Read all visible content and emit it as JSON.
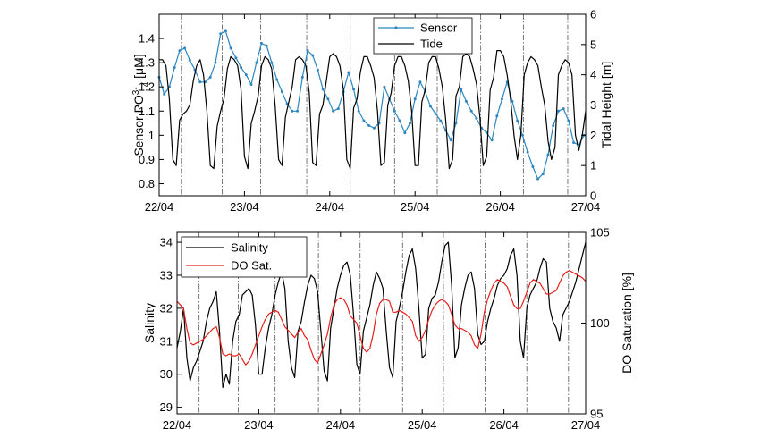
{
  "chart_data": [
    {
      "type": "line",
      "x_ticks": [
        "22/04",
        "23/04",
        "24/04",
        "25/04",
        "26/04",
        "27/04"
      ],
      "xlim": [
        0,
        5
      ],
      "left_axis": {
        "label_main": "Sensor PO",
        "label_sup": "3-",
        "label_sub": "4",
        "label_unit": " [μM]",
        "ylim": [
          0.75,
          1.5
        ],
        "ticks": [
          "0.8",
          "0.9",
          "1",
          "1.1",
          "1.2",
          "1.3",
          "1.4"
        ],
        "tick_values": [
          0.8,
          0.9,
          1.0,
          1.1,
          1.2,
          1.3,
          1.4
        ]
      },
      "right_axis": {
        "label": "Tidal Height [m]",
        "ylim": [
          0,
          6
        ],
        "ticks": [
          "0",
          "1",
          "2",
          "3",
          "4",
          "5",
          "6"
        ],
        "tick_values": [
          0,
          1,
          2,
          3,
          4,
          5,
          6
        ]
      },
      "legend": {
        "placement": "top-center",
        "entries": [
          "Sensor",
          "Tide"
        ]
      },
      "series": [
        {
          "name": "Sensor",
          "axis": "left",
          "color": "#2b86c1",
          "marker": "dot",
          "x": [
            0.0,
            0.06,
            0.12,
            0.18,
            0.24,
            0.3,
            0.36,
            0.42,
            0.48,
            0.54,
            0.6,
            0.66,
            0.72,
            0.78,
            0.84,
            0.9,
            0.96,
            1.02,
            1.08,
            1.14,
            1.2,
            1.26,
            1.32,
            1.38,
            1.44,
            1.5,
            1.56,
            1.62,
            1.68,
            1.74,
            1.8,
            1.86,
            1.92,
            1.98,
            2.04,
            2.1,
            2.16,
            2.22,
            2.28,
            2.34,
            2.4,
            2.46,
            2.52,
            2.58,
            2.64,
            2.7,
            2.76,
            2.82,
            2.88,
            2.94,
            3.0,
            3.06,
            3.12,
            3.18,
            3.24,
            3.3,
            3.36,
            3.42,
            3.48,
            3.54,
            3.6,
            3.66,
            3.72,
            3.78,
            3.84,
            3.9,
            3.96,
            4.02,
            4.08,
            4.14,
            4.2,
            4.26,
            4.32,
            4.38,
            4.44,
            4.5,
            4.56,
            4.62,
            4.68,
            4.74,
            4.8,
            4.86,
            4.92,
            4.98
          ],
          "y": [
            1.24,
            1.17,
            1.2,
            1.28,
            1.35,
            1.36,
            1.31,
            1.27,
            1.22,
            1.22,
            1.24,
            1.3,
            1.42,
            1.43,
            1.36,
            1.32,
            1.28,
            1.25,
            1.21,
            1.3,
            1.38,
            1.37,
            1.3,
            1.23,
            1.18,
            1.13,
            1.1,
            1.1,
            1.24,
            1.35,
            1.33,
            1.27,
            1.19,
            1.15,
            1.1,
            1.11,
            1.18,
            1.26,
            1.19,
            1.1,
            1.06,
            1.04,
            1.03,
            1.05,
            1.2,
            1.15,
            1.1,
            1.06,
            1.01,
            1.05,
            1.15,
            1.22,
            1.18,
            1.12,
            1.09,
            1.06,
            1.02,
            0.98,
            1.05,
            1.19,
            1.14,
            1.1,
            1.07,
            1.03,
            1.01,
            0.98,
            1.08,
            1.15,
            1.22,
            1.14,
            1.06,
            1.0,
            0.93,
            0.87,
            0.82,
            0.84,
            0.92,
            1.04,
            1.1,
            1.11,
            1.06,
            0.97,
            0.96,
            1.0
          ]
        },
        {
          "name": "Tide",
          "axis": "right",
          "color": "#000000",
          "x": [
            0.0,
            0.04,
            0.08,
            0.12,
            0.16,
            0.2,
            0.24,
            0.28,
            0.32,
            0.36,
            0.4,
            0.44,
            0.48,
            0.52,
            0.56,
            0.6,
            0.64,
            0.68,
            0.72,
            0.76,
            0.8,
            0.84,
            0.88,
            0.92,
            0.96,
            1.0,
            1.04,
            1.08,
            1.12,
            1.16,
            1.2,
            1.24,
            1.28,
            1.32,
            1.36,
            1.4,
            1.44,
            1.48,
            1.52,
            1.56,
            1.6,
            1.64,
            1.68,
            1.72,
            1.76,
            1.8,
            1.84,
            1.88,
            1.92,
            1.96,
            2.0,
            2.04,
            2.08,
            2.12,
            2.16,
            2.2,
            2.24,
            2.28,
            2.32,
            2.36,
            2.4,
            2.44,
            2.48,
            2.52,
            2.56,
            2.6,
            2.64,
            2.68,
            2.72,
            2.76,
            2.8,
            2.84,
            2.88,
            2.92,
            2.96,
            3.0,
            3.04,
            3.08,
            3.12,
            3.16,
            3.2,
            3.24,
            3.28,
            3.32,
            3.36,
            3.4,
            3.44,
            3.48,
            3.52,
            3.56,
            3.6,
            3.64,
            3.68,
            3.72,
            3.76,
            3.8,
            3.84,
            3.88,
            3.92,
            3.96,
            4.0,
            4.04,
            4.08,
            4.12,
            4.16,
            4.2,
            4.24,
            4.28,
            4.32,
            4.36,
            4.4,
            4.44,
            4.48,
            4.52,
            4.56,
            4.6,
            4.64,
            4.68,
            4.72,
            4.76,
            4.8,
            4.84,
            4.88,
            4.92,
            4.96,
            5.0
          ],
          "y": [
            4.5,
            4.5,
            4.3,
            3.2,
            1.2,
            1.0,
            2.5,
            2.7,
            2.8,
            3.0,
            3.8,
            4.3,
            4.5,
            4.0,
            2.8,
            1.0,
            0.9,
            2.3,
            2.8,
            3.2,
            4.2,
            4.6,
            4.5,
            4.3,
            3.5,
            1.3,
            0.9,
            2.4,
            2.8,
            3.3,
            4.3,
            4.6,
            4.5,
            4.2,
            3.0,
            1.2,
            1.0,
            2.6,
            3.1,
            3.6,
            4.5,
            4.6,
            4.5,
            4.3,
            3.4,
            1.1,
            1.0,
            2.7,
            3.0,
            3.8,
            4.6,
            4.7,
            4.6,
            4.3,
            3.5,
            1.2,
            0.9,
            2.9,
            3.2,
            4.1,
            4.6,
            4.6,
            4.3,
            3.9,
            2.8,
            1.0,
            1.1,
            3.0,
            3.4,
            4.3,
            4.6,
            4.6,
            4.3,
            3.8,
            2.8,
            1.0,
            1.0,
            3.1,
            3.5,
            4.4,
            4.6,
            4.6,
            4.2,
            3.6,
            2.5,
            0.9,
            1.2,
            3.3,
            3.6,
            4.6,
            4.7,
            4.6,
            4.2,
            3.7,
            2.6,
            1.0,
            1.3,
            3.5,
            3.9,
            4.8,
            4.8,
            4.6,
            4.0,
            3.2,
            2.0,
            1.2,
            2.0,
            4.0,
            4.4,
            4.6,
            4.5,
            4.3,
            3.6,
            3.0,
            1.8,
            1.2,
            1.6,
            4.0,
            4.3,
            4.5,
            4.4,
            4.0,
            2.0,
            1.5,
            2.0,
            2.8
          ]
        }
      ],
      "vlines_x": [
        0.26,
        0.74,
        1.19,
        1.73,
        2.24,
        2.76,
        3.26,
        3.77,
        4.27,
        4.79
      ]
    },
    {
      "type": "line",
      "x_ticks": [
        "22/04",
        "23/04",
        "24/04",
        "25/04",
        "26/04",
        "27/04"
      ],
      "xlim": [
        0,
        5
      ],
      "left_axis": {
        "label": "Salinity",
        "ylim": [
          28.8,
          34.3
        ],
        "ticks": [
          "29",
          "30",
          "31",
          "32",
          "33",
          "34"
        ],
        "tick_values": [
          29,
          30,
          31,
          32,
          33,
          34
        ]
      },
      "right_axis": {
        "label": "DO Saturation [%]",
        "ylim": [
          95,
          105
        ],
        "ticks": [
          "95",
          "100",
          "105"
        ],
        "tick_values": [
          95,
          100,
          105
        ]
      },
      "legend": {
        "placement": "top-left",
        "entries": [
          "Salinity",
          "DO Sat."
        ]
      },
      "series": [
        {
          "name": "Salinity",
          "axis": "left",
          "color": "#000000",
          "x": [
            0.0,
            0.04,
            0.08,
            0.12,
            0.16,
            0.2,
            0.24,
            0.28,
            0.32,
            0.36,
            0.4,
            0.44,
            0.48,
            0.52,
            0.56,
            0.6,
            0.64,
            0.68,
            0.72,
            0.76,
            0.8,
            0.84,
            0.88,
            0.92,
            0.96,
            1.0,
            1.04,
            1.08,
            1.12,
            1.16,
            1.2,
            1.24,
            1.28,
            1.32,
            1.36,
            1.4,
            1.44,
            1.48,
            1.52,
            1.56,
            1.6,
            1.64,
            1.68,
            1.72,
            1.76,
            1.8,
            1.84,
            1.88,
            1.92,
            1.96,
            2.0,
            2.04,
            2.08,
            2.12,
            2.16,
            2.2,
            2.24,
            2.28,
            2.32,
            2.36,
            2.4,
            2.44,
            2.48,
            2.52,
            2.56,
            2.6,
            2.64,
            2.68,
            2.72,
            2.76,
            2.8,
            2.84,
            2.88,
            2.92,
            2.96,
            3.0,
            3.04,
            3.08,
            3.12,
            3.16,
            3.2,
            3.24,
            3.28,
            3.32,
            3.36,
            3.4,
            3.44,
            3.48,
            3.52,
            3.56,
            3.6,
            3.64,
            3.68,
            3.72,
            3.76,
            3.8,
            3.84,
            3.88,
            3.92,
            3.96,
            4.0,
            4.04,
            4.08,
            4.12,
            4.16,
            4.2,
            4.24,
            4.28,
            4.32,
            4.36,
            4.4,
            4.44,
            4.48,
            4.52,
            4.56,
            4.6,
            4.64,
            4.68,
            4.72,
            4.76,
            4.8,
            4.84,
            4.88,
            4.92,
            4.96,
            5.0
          ],
          "y": [
            30.8,
            31.3,
            32.0,
            30.5,
            29.8,
            30.2,
            30.4,
            30.7,
            31.0,
            31.6,
            32.0,
            32.2,
            32.5,
            31.3,
            29.6,
            30.0,
            29.7,
            31.0,
            31.6,
            31.8,
            32.4,
            32.5,
            32.6,
            32.4,
            31.5,
            30.0,
            30.0,
            30.8,
            31.4,
            31.8,
            32.4,
            32.8,
            33.1,
            32.6,
            31.0,
            30.2,
            29.9,
            31.3,
            31.6,
            32.2,
            32.7,
            33.0,
            32.9,
            32.5,
            31.3,
            30.1,
            29.8,
            31.4,
            32.0,
            32.6,
            33.0,
            33.3,
            33.4,
            33.0,
            31.8,
            30.3,
            30.0,
            31.3,
            31.7,
            32.1,
            32.7,
            33.1,
            32.9,
            32.6,
            31.3,
            30.2,
            29.9,
            31.6,
            32.0,
            32.5,
            33.1,
            33.6,
            33.8,
            33.2,
            32.0,
            30.5,
            30.6,
            32.0,
            32.3,
            32.4,
            32.8,
            33.4,
            33.9,
            34.0,
            32.7,
            30.5,
            30.8,
            32.1,
            32.6,
            33.0,
            33.1,
            32.6,
            31.2,
            30.9,
            31.0,
            31.6,
            32.0,
            32.3,
            32.7,
            32.9,
            33.0,
            33.2,
            33.6,
            33.8,
            33.0,
            31.0,
            30.5,
            32.0,
            32.4,
            32.6,
            32.8,
            33.2,
            33.5,
            33.4,
            32.0,
            31.6,
            31.4,
            31.0,
            31.8,
            32.0,
            32.2,
            32.5,
            32.8,
            33.2,
            33.6,
            34.0
          ]
        },
        {
          "name": "DO Sat.",
          "axis": "right",
          "color": "#e8201a",
          "x": [
            0.0,
            0.04,
            0.08,
            0.12,
            0.16,
            0.2,
            0.24,
            0.28,
            0.32,
            0.36,
            0.4,
            0.44,
            0.48,
            0.52,
            0.56,
            0.6,
            0.64,
            0.68,
            0.72,
            0.76,
            0.8,
            0.84,
            0.88,
            0.92,
            0.96,
            1.0,
            1.04,
            1.08,
            1.12,
            1.16,
            1.2,
            1.24,
            1.28,
            1.32,
            1.36,
            1.4,
            1.44,
            1.48,
            1.52,
            1.56,
            1.6,
            1.64,
            1.68,
            1.72,
            1.76,
            1.8,
            1.84,
            1.88,
            1.92,
            1.96,
            2.0,
            2.04,
            2.08,
            2.12,
            2.16,
            2.2,
            2.24,
            2.28,
            2.32,
            2.36,
            2.4,
            2.44,
            2.48,
            2.52,
            2.56,
            2.6,
            2.64,
            2.68,
            2.72,
            2.76,
            2.8,
            2.84,
            2.88,
            2.92,
            2.96,
            3.0,
            3.04,
            3.08,
            3.12,
            3.16,
            3.2,
            3.24,
            3.28,
            3.32,
            3.36,
            3.4,
            3.44,
            3.48,
            3.52,
            3.56,
            3.6,
            3.64,
            3.68,
            3.72,
            3.76,
            3.8,
            3.84,
            3.88,
            3.92,
            3.96,
            4.0,
            4.04,
            4.08,
            4.12,
            4.16,
            4.2,
            4.24,
            4.28,
            4.32,
            4.36,
            4.4,
            4.44,
            4.48,
            4.52,
            4.56,
            4.6,
            4.64,
            4.68,
            4.72,
            4.76,
            4.8,
            4.84,
            4.88,
            4.92,
            4.96,
            5.0
          ],
          "y": [
            101.2,
            101.0,
            100.8,
            99.7,
            98.9,
            98.8,
            98.9,
            99.0,
            99.1,
            99.3,
            99.5,
            99.7,
            99.8,
            99.2,
            98.3,
            98.2,
            98.3,
            98.2,
            98.2,
            98.3,
            98.0,
            97.7,
            97.9,
            98.3,
            98.8,
            99.3,
            99.8,
            100.2,
            100.5,
            100.6,
            100.7,
            100.6,
            100.2,
            99.8,
            99.6,
            99.4,
            99.2,
            99.5,
            99.7,
            99.3,
            99.1,
            98.5,
            98.0,
            97.8,
            98.3,
            98.8,
            99.4,
            100.3,
            101.0,
            101.3,
            101.4,
            101.3,
            101.0,
            100.4,
            100.2,
            100.0,
            99.3,
            98.6,
            98.4,
            98.6,
            99.4,
            100.5,
            101.1,
            101.3,
            101.3,
            101.2,
            100.6,
            100.6,
            100.7,
            100.6,
            100.5,
            100.3,
            100.1,
            99.3,
            99.0,
            99.2,
            99.6,
            100.2,
            100.7,
            101.0,
            101.2,
            101.3,
            101.2,
            101.0,
            100.5,
            99.9,
            99.7,
            99.7,
            99.6,
            99.5,
            99.3,
            98.8,
            98.6,
            99.4,
            100.6,
            101.3,
            101.8,
            102.2,
            102.4,
            102.3,
            102.2,
            102.0,
            101.5,
            101.0,
            100.8,
            100.8,
            101.2,
            101.7,
            102.2,
            102.4,
            102.3,
            102.2,
            101.9,
            101.6,
            101.6,
            101.7,
            101.8,
            102.2,
            102.6,
            102.8,
            102.9,
            102.8,
            102.7,
            102.6,
            102.5,
            102.3
          ]
        }
      ],
      "vlines_x": [
        0.27,
        0.75,
        1.2,
        1.73,
        2.24,
        2.76,
        3.26,
        3.77,
        4.28,
        4.79
      ]
    }
  ]
}
